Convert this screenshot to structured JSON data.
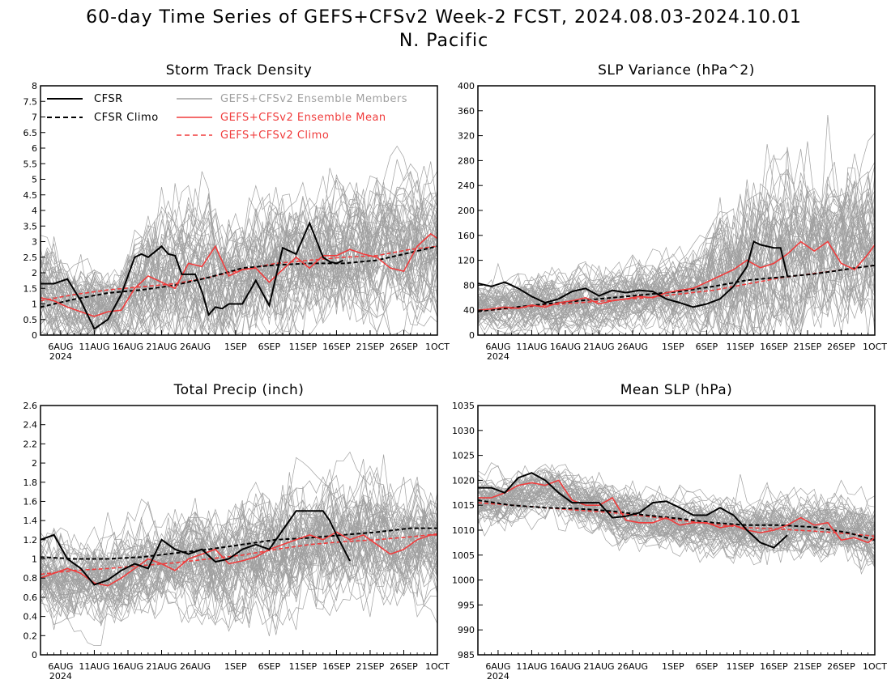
{
  "figure": {
    "title_line1": "60-day Time Series of GEFS+CFSv2 Week-2 FCST, 2024.08.03-2024.10.01",
    "title_line2": "N. Pacific"
  },
  "legend": {
    "cfsr": "CFSR",
    "cfsr_climo": "CFSR Climo",
    "members": "GEFS+CFSv2 Ensemble Members",
    "mean": "GEFS+CFSv2 Ensemble Mean",
    "climo": "GEFS+CFSv2 Climo"
  },
  "colors": {
    "cfsr": "#000000",
    "members": "#a0a0a0",
    "mean": "#f03c3c",
    "climo": "#f03c3c"
  },
  "x_axis": {
    "tick_days": [
      3,
      8,
      13,
      18,
      23,
      29,
      34,
      39,
      44,
      49,
      54,
      59
    ],
    "tick_labels": [
      "6AUG",
      "11AUG",
      "16AUG",
      "21AUG",
      "26AUG",
      "1SEP",
      "6SEP",
      "11SEP",
      "16SEP",
      "21SEP",
      "26SEP",
      "1OCT"
    ],
    "year_label": "2024",
    "range": [
      0,
      59
    ]
  },
  "chart_data": [
    {
      "type": "line",
      "title": "Storm Track Density",
      "ylim": [
        0,
        8
      ],
      "yticks": [
        0,
        0.5,
        1,
        1.5,
        2,
        2.5,
        3,
        3.5,
        4,
        4.5,
        5,
        5.5,
        6,
        6.5,
        7,
        7.5,
        8
      ],
      "ytick_labels": [
        "0",
        "0.5",
        "1",
        "1.5",
        "2",
        "2.5",
        "3",
        "3.5",
        "4",
        "4.5",
        "5",
        "5.5",
        "6",
        "6.5",
        "7",
        "7.5",
        "8"
      ],
      "series": [
        {
          "name": "CFSR",
          "role": "cfsr",
          "x": [
            0,
            2,
            4,
            6,
            8,
            10,
            12,
            14,
            15,
            16,
            18,
            19,
            20,
            21,
            22,
            23,
            24,
            25,
            26,
            27,
            28,
            30,
            32,
            34,
            36,
            38,
            40,
            42,
            43,
            44,
            45
          ],
          "y": [
            1.65,
            1.65,
            1.8,
            1.1,
            0.2,
            0.5,
            1.3,
            2.5,
            2.6,
            2.5,
            2.85,
            2.6,
            2.55,
            1.95,
            1.95,
            1.95,
            1.4,
            0.65,
            0.9,
            0.85,
            1.0,
            1.0,
            1.75,
            0.95,
            2.8,
            2.6,
            3.6,
            2.5,
            2.35,
            2.3,
            2.4
          ]
        },
        {
          "name": "CFSR Climo",
          "role": "cfsr_climo",
          "x": [
            0,
            5,
            10,
            15,
            20,
            25,
            30,
            35,
            40,
            45,
            50,
            55,
            59
          ],
          "y": [
            0.9,
            1.15,
            1.35,
            1.45,
            1.6,
            1.85,
            2.15,
            2.25,
            2.3,
            2.3,
            2.4,
            2.65,
            2.85
          ]
        },
        {
          "name": "GEFS+CFSv2 Ensemble Mean",
          "role": "mean",
          "x": [
            0,
            2,
            4,
            6,
            8,
            10,
            12,
            14,
            16,
            18,
            20,
            22,
            24,
            26,
            28,
            30,
            32,
            34,
            36,
            38,
            40,
            42,
            44,
            46,
            48,
            50,
            52,
            54,
            56,
            58,
            59
          ],
          "y": [
            1.2,
            1.1,
            0.9,
            0.75,
            0.6,
            0.75,
            0.8,
            1.5,
            1.9,
            1.7,
            1.5,
            2.3,
            2.2,
            2.85,
            1.9,
            2.1,
            2.15,
            1.7,
            2.1,
            2.5,
            2.15,
            2.55,
            2.55,
            2.75,
            2.6,
            2.5,
            2.15,
            2.05,
            2.85,
            3.25,
            3.1
          ]
        },
        {
          "name": "GEFS+CFSv2 Climo",
          "role": "climo",
          "x": [
            0,
            5,
            10,
            15,
            20,
            25,
            30,
            35,
            40,
            45,
            50,
            55,
            59
          ],
          "y": [
            1.1,
            1.3,
            1.45,
            1.55,
            1.65,
            1.85,
            2.1,
            2.3,
            2.4,
            2.5,
            2.55,
            2.75,
            2.85
          ]
        }
      ],
      "members": {
        "mean": [
          1.2,
          0.8,
          0.8,
          1.5,
          1.9,
          1.6,
          2.1,
          2.25,
          2.5,
          2.6,
          2.6,
          2.85
        ],
        "spread": [
          1.9,
          1.6,
          1.5,
          2.3,
          2.6,
          2.3,
          2.4,
          2.4,
          2.5,
          2.6,
          2.6,
          2.6
        ]
      }
    },
    {
      "type": "line",
      "title": "SLP Variance (hPa^2)",
      "ylim": [
        0,
        400
      ],
      "yticks": [
        0,
        40,
        80,
        120,
        160,
        200,
        240,
        280,
        320,
        360,
        400
      ],
      "ytick_labels": [
        "0",
        "40",
        "80",
        "120",
        "160",
        "200",
        "240",
        "280",
        "320",
        "360",
        "400"
      ],
      "series": [
        {
          "name": "CFSR",
          "role": "cfsr",
          "x": [
            0,
            2,
            4,
            6,
            8,
            10,
            12,
            14,
            16,
            18,
            20,
            22,
            24,
            26,
            28,
            30,
            32,
            34,
            36,
            38,
            40,
            41,
            42,
            44,
            45,
            46
          ],
          "y": [
            83,
            78,
            85,
            75,
            62,
            52,
            58,
            70,
            75,
            63,
            72,
            68,
            72,
            70,
            58,
            52,
            45,
            50,
            58,
            78,
            110,
            150,
            145,
            140,
            140,
            95
          ]
        },
        {
          "name": "CFSR Climo",
          "role": "cfsr_climo",
          "x": [
            0,
            5,
            10,
            15,
            20,
            25,
            30,
            35,
            40,
            45,
            50,
            55,
            59
          ],
          "y": [
            38,
            44,
            50,
            55,
            60,
            65,
            70,
            78,
            88,
            93,
            98,
            106,
            112
          ]
        },
        {
          "name": "GEFS+CFSv2 Ensemble Mean",
          "role": "mean",
          "x": [
            0,
            2,
            4,
            6,
            8,
            10,
            12,
            14,
            16,
            18,
            20,
            22,
            24,
            26,
            28,
            30,
            32,
            34,
            36,
            38,
            40,
            42,
            44,
            46,
            48,
            50,
            52,
            54,
            56,
            58,
            59
          ],
          "y": [
            40,
            42,
            45,
            43,
            48,
            45,
            52,
            55,
            60,
            50,
            55,
            58,
            62,
            60,
            68,
            72,
            75,
            85,
            95,
            105,
            120,
            108,
            115,
            130,
            150,
            135,
            150,
            115,
            105,
            130,
            145
          ]
        },
        {
          "name": "GEFS+CFSv2 Climo",
          "role": "climo",
          "x": [
            0,
            5,
            10,
            15,
            20,
            25,
            30,
            35,
            40,
            45,
            50,
            55,
            59
          ],
          "y": [
            38,
            43,
            48,
            52,
            56,
            60,
            66,
            72,
            82,
            92,
            99,
            106,
            112
          ]
        }
      ],
      "members": {
        "mean": [
          42,
          45,
          50,
          55,
          55,
          62,
          70,
          90,
          120,
          130,
          140,
          140
        ],
        "spread": [
          40,
          50,
          55,
          60,
          60,
          60,
          80,
          140,
          160,
          140,
          130,
          140
        ]
      }
    },
    {
      "type": "line",
      "title": "Total Precip (inch)",
      "ylim": [
        0,
        2.6
      ],
      "yticks": [
        0,
        0.2,
        0.4,
        0.6,
        0.8,
        1,
        1.2,
        1.4,
        1.6,
        1.8,
        2,
        2.2,
        2.4,
        2.6
      ],
      "ytick_labels": [
        "0",
        "0.2",
        "0.4",
        "0.6",
        "0.8",
        "1",
        "1.2",
        "1.4",
        "1.6",
        "1.8",
        "2",
        "2.2",
        "2.4",
        "2.6"
      ],
      "series": [
        {
          "name": "CFSR",
          "role": "cfsr",
          "x": [
            0,
            2,
            4,
            6,
            8,
            10,
            12,
            14,
            16,
            18,
            20,
            22,
            24,
            26,
            28,
            30,
            32,
            34,
            36,
            38,
            40,
            42,
            43,
            44,
            46
          ],
          "y": [
            1.2,
            1.25,
            1.0,
            0.9,
            0.73,
            0.78,
            0.88,
            0.95,
            0.9,
            1.2,
            1.1,
            1.05,
            1.1,
            0.97,
            1.0,
            1.1,
            1.15,
            1.1,
            1.3,
            1.5,
            1.5,
            1.5,
            1.4,
            1.25,
            0.98
          ]
        },
        {
          "name": "CFSR Climo",
          "role": "cfsr_climo",
          "x": [
            0,
            5,
            10,
            15,
            20,
            25,
            30,
            35,
            40,
            45,
            50,
            55,
            59
          ],
          "y": [
            1.02,
            1.0,
            1.0,
            1.02,
            1.06,
            1.1,
            1.15,
            1.2,
            1.22,
            1.25,
            1.28,
            1.32,
            1.32
          ]
        },
        {
          "name": "GEFS+CFSv2 Ensemble Mean",
          "role": "mean",
          "x": [
            0,
            2,
            4,
            6,
            8,
            10,
            12,
            14,
            16,
            18,
            20,
            22,
            24,
            26,
            28,
            30,
            32,
            34,
            36,
            38,
            40,
            42,
            44,
            46,
            48,
            50,
            52,
            54,
            56,
            58,
            59
          ],
          "y": [
            0.8,
            0.85,
            0.9,
            0.85,
            0.75,
            0.72,
            0.8,
            0.9,
            1.0,
            0.95,
            0.88,
            1.0,
            1.05,
            1.1,
            0.95,
            0.98,
            1.02,
            1.1,
            1.15,
            1.2,
            1.25,
            1.2,
            1.28,
            1.2,
            1.25,
            1.15,
            1.05,
            1.1,
            1.2,
            1.25,
            1.25
          ]
        },
        {
          "name": "GEFS+CFSv2 Climo",
          "role": "climo",
          "x": [
            0,
            5,
            10,
            15,
            20,
            25,
            30,
            35,
            40,
            45,
            50,
            55,
            59
          ],
          "y": [
            0.84,
            0.88,
            0.9,
            0.93,
            0.96,
            1.0,
            1.04,
            1.1,
            1.15,
            1.18,
            1.2,
            1.23,
            1.26
          ]
        }
      ],
      "members": {
        "mean": [
          0.85,
          0.82,
          0.8,
          0.95,
          1.0,
          1.0,
          1.05,
          1.15,
          1.25,
          1.25,
          1.2,
          1.2
        ],
        "spread": [
          0.5,
          0.5,
          0.5,
          0.55,
          0.6,
          0.6,
          0.7,
          0.8,
          0.7,
          0.7,
          0.65,
          0.65
        ]
      }
    },
    {
      "type": "line",
      "title": "Mean SLP (hPa)",
      "ylim": [
        985,
        1035
      ],
      "yticks": [
        985,
        990,
        995,
        1000,
        1005,
        1010,
        1015,
        1020,
        1025,
        1030,
        1035
      ],
      "ytick_labels": [
        "985",
        "990",
        "995",
        "1000",
        "1005",
        "1010",
        "1015",
        "1020",
        "1025",
        "1030",
        "1035"
      ],
      "series": [
        {
          "name": "CFSR",
          "role": "cfsr",
          "x": [
            0,
            2,
            4,
            6,
            8,
            10,
            12,
            14,
            16,
            18,
            20,
            22,
            24,
            26,
            28,
            30,
            32,
            34,
            36,
            38,
            40,
            42,
            44,
            46
          ],
          "y": [
            1018.5,
            1018.5,
            1017.5,
            1020.5,
            1021.5,
            1020,
            1017.5,
            1015.5,
            1015.5,
            1015.5,
            1012.5,
            1012.8,
            1013.5,
            1015.5,
            1015.8,
            1014.5,
            1013,
            1013,
            1014.5,
            1013,
            1010,
            1007.5,
            1006.5,
            1009
          ]
        },
        {
          "name": "CFSR Climo",
          "role": "cfsr_climo",
          "x": [
            0,
            5,
            10,
            15,
            20,
            25,
            30,
            35,
            40,
            45,
            50,
            55,
            59
          ],
          "y": [
            1016,
            1015,
            1014.5,
            1014.3,
            1013.8,
            1013,
            1012.3,
            1011.5,
            1011,
            1011,
            1010.6,
            1009.5,
            1008
          ]
        },
        {
          "name": "GEFS+CFSv2 Ensemble Mean",
          "role": "mean",
          "x": [
            0,
            2,
            4,
            6,
            8,
            10,
            12,
            14,
            16,
            18,
            20,
            22,
            24,
            26,
            28,
            30,
            32,
            34,
            36,
            38,
            40,
            42,
            44,
            46,
            48,
            50,
            52,
            54,
            56,
            58,
            59
          ],
          "y": [
            1016.5,
            1016.5,
            1017.5,
            1019,
            1019.5,
            1019,
            1020,
            1016,
            1015,
            1015,
            1016.5,
            1012,
            1011.5,
            1011.5,
            1012.5,
            1011,
            1011.5,
            1011.5,
            1010.5,
            1011,
            1010,
            1009.5,
            1010,
            1011,
            1012.5,
            1011,
            1011.5,
            1008,
            1008.5,
            1007.5,
            1008.5
          ]
        },
        {
          "name": "GEFS+CFSv2 Climo",
          "role": "climo",
          "x": [
            0,
            5,
            10,
            15,
            20,
            25,
            30,
            35,
            40,
            45,
            50,
            55,
            59
          ],
          "y": [
            1015.5,
            1015,
            1014.5,
            1014,
            1013.5,
            1012.8,
            1012,
            1011.2,
            1010.5,
            1010.2,
            1009.8,
            1009.3,
            1008.8
          ]
        }
      ],
      "members": {
        "mean": [
          1016,
          1017,
          1018.5,
          1016,
          1013.5,
          1012,
          1011.5,
          1010.5,
          1010.5,
          1011,
          1011,
          1009
        ],
        "spread": [
          6,
          6,
          5,
          6,
          6,
          6,
          6,
          6,
          7,
          7,
          7,
          7
        ]
      }
    }
  ]
}
